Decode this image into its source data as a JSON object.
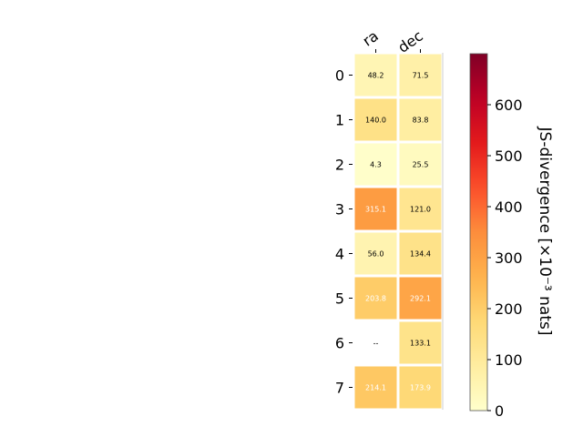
{
  "chart_data": {
    "type": "heatmap",
    "columns": [
      "ra",
      "dec"
    ],
    "rows": [
      "0",
      "1",
      "2",
      "3",
      "4",
      "5",
      "6",
      "7"
    ],
    "values": [
      [
        48.2,
        71.5
      ],
      [
        140.0,
        83.8
      ],
      [
        4.3,
        25.5
      ],
      [
        315.1,
        121.0
      ],
      [
        56.0,
        134.4
      ],
      [
        203.8,
        292.1
      ],
      [
        null,
        133.1
      ],
      [
        214.1,
        173.9
      ]
    ],
    "cell_labels": [
      [
        "48.2",
        "71.5"
      ],
      [
        "140.0",
        "83.8"
      ],
      [
        "4.3",
        "25.5"
      ],
      [
        "315.1",
        "121.0"
      ],
      [
        "56.0",
        "134.4"
      ],
      [
        "203.8",
        "292.1"
      ],
      [
        "--",
        "133.1"
      ],
      [
        "214.1",
        "173.9"
      ]
    ],
    "label_colors": [
      [
        "#000000",
        "#000000"
      ],
      [
        "#000000",
        "#000000"
      ],
      [
        "#000000",
        "#000000"
      ],
      [
        "#ffffff",
        "#000000"
      ],
      [
        "#000000",
        "#000000"
      ],
      [
        "#ffffff",
        "#ffffff"
      ],
      [
        "#000000",
        "#000000"
      ],
      [
        "#ffffff",
        "#ffffff"
      ]
    ],
    "colorbar": {
      "label": "JS-divergence [×10⁻³ nats]",
      "range": [
        0,
        700
      ],
      "ticks": [
        0,
        100,
        200,
        300,
        400,
        500,
        600
      ],
      "colormap": "YlOrRd"
    }
  }
}
